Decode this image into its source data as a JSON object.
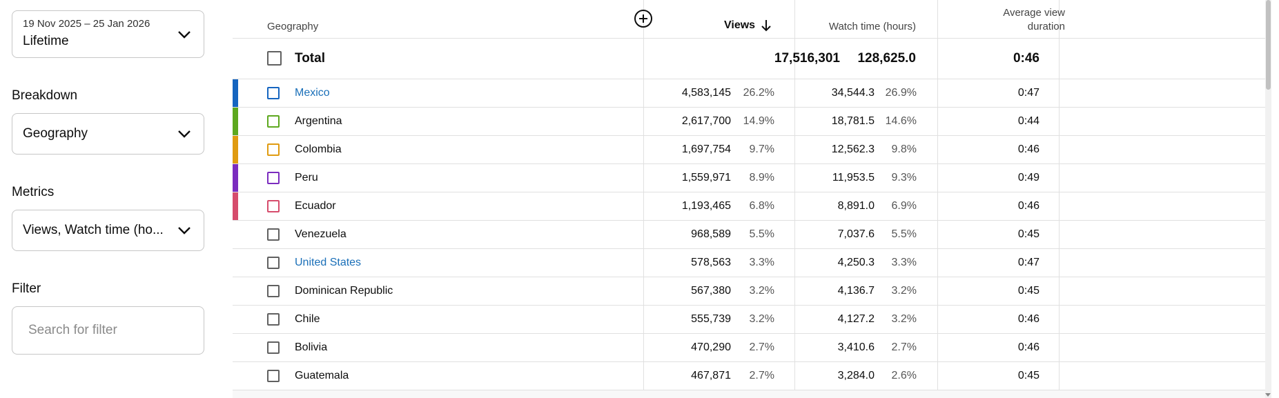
{
  "sidebar": {
    "date_range": {
      "dates": "19 Nov 2025 – 25 Jan 2026",
      "period": "Lifetime"
    },
    "breakdown": {
      "label": "Breakdown",
      "value": "Geography"
    },
    "metrics": {
      "label": "Metrics",
      "value": "Views, Watch time (ho..."
    },
    "filter": {
      "label": "Filter",
      "placeholder": "Search for filter"
    }
  },
  "table": {
    "headers": {
      "geography": "Geography",
      "views": "Views",
      "watch_time": "Watch time (hours)",
      "avg_view_duration_line1": "Average view",
      "avg_view_duration_line2": "duration"
    },
    "sort": {
      "column": "views",
      "direction": "descending",
      "icon": "arrow-down-icon"
    },
    "total": {
      "label": "Total",
      "views": "17,516,301",
      "watch_time": "128,625.0",
      "avg_view_duration": "0:46"
    },
    "rows": [
      {
        "name": "Mexico",
        "link": true,
        "views": "4,583,145",
        "views_pct": "26.2%",
        "watch_time": "34,544.3",
        "watch_pct": "26.9%",
        "avg": "0:47",
        "color": "#1565c0"
      },
      {
        "name": "Argentina",
        "link": false,
        "views": "2,617,700",
        "views_pct": "14.9%",
        "watch_time": "18,781.5",
        "watch_pct": "14.6%",
        "avg": "0:44",
        "color": "#5da81e"
      },
      {
        "name": "Colombia",
        "link": false,
        "views": "1,697,754",
        "views_pct": "9.7%",
        "watch_time": "12,562.3",
        "watch_pct": "9.8%",
        "avg": "0:46",
        "color": "#e09b10"
      },
      {
        "name": "Peru",
        "link": false,
        "views": "1,559,971",
        "views_pct": "8.9%",
        "watch_time": "11,953.5",
        "watch_pct": "9.3%",
        "avg": "0:49",
        "color": "#7b2cbf"
      },
      {
        "name": "Ecuador",
        "link": false,
        "views": "1,193,465",
        "views_pct": "6.8%",
        "watch_time": "8,891.0",
        "watch_pct": "6.9%",
        "avg": "0:46",
        "color": "#d64c6c"
      },
      {
        "name": "Venezuela",
        "link": false,
        "views": "968,589",
        "views_pct": "5.5%",
        "watch_time": "7,037.6",
        "watch_pct": "5.5%",
        "avg": "0:45",
        "color": ""
      },
      {
        "name": "United States",
        "link": true,
        "views": "578,563",
        "views_pct": "3.3%",
        "watch_time": "4,250.3",
        "watch_pct": "3.3%",
        "avg": "0:47",
        "color": ""
      },
      {
        "name": "Dominican Republic",
        "link": false,
        "views": "567,380",
        "views_pct": "3.2%",
        "watch_time": "4,136.7",
        "watch_pct": "3.2%",
        "avg": "0:45",
        "color": ""
      },
      {
        "name": "Chile",
        "link": false,
        "views": "555,739",
        "views_pct": "3.2%",
        "watch_time": "4,127.2",
        "watch_pct": "3.2%",
        "avg": "0:46",
        "color": ""
      },
      {
        "name": "Bolivia",
        "link": false,
        "views": "470,290",
        "views_pct": "2.7%",
        "watch_time": "3,410.6",
        "watch_pct": "2.7%",
        "avg": "0:46",
        "color": ""
      },
      {
        "name": "Guatemala",
        "link": false,
        "views": "467,871",
        "views_pct": "2.7%",
        "watch_time": "3,284.0",
        "watch_pct": "2.6%",
        "avg": "0:45",
        "color": ""
      }
    ]
  },
  "colors": {
    "link": "#1a6fb8",
    "border": "#c6c6c6",
    "divider": "#e0e0e0"
  }
}
